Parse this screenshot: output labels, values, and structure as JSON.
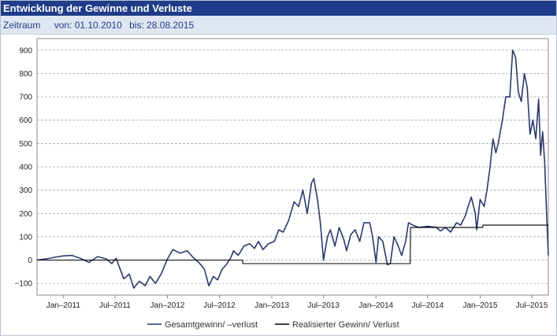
{
  "header": {
    "title": "Entwicklung der Gewinne und Verluste"
  },
  "range": {
    "label": "Zeitraum",
    "from_label": "von: 01.10.2010",
    "to_label": "bis: 28.08.2015"
  },
  "colors": {
    "title_bg": "#1f3c88",
    "range_bg": "#dfe6f1",
    "series_total": "#2b3a6b",
    "series_realized": "#000000",
    "grid": "#9a9a9a"
  },
  "chart_data": {
    "type": "line",
    "x_unit": "date",
    "xlim": [
      "2010-10-01",
      "2015-08-28"
    ],
    "ylim": [
      -150,
      950
    ],
    "yticks": [
      -100,
      0,
      100,
      200,
      300,
      400,
      500,
      600,
      700,
      800,
      900
    ],
    "ytick_labels": [
      "−100",
      "0",
      "100",
      "200",
      "300",
      "400",
      "500",
      "600",
      "700",
      "800",
      "900"
    ],
    "xticks": [
      "2011-01-01",
      "2011-07-01",
      "2012-01-01",
      "2012-07-01",
      "2013-01-01",
      "2013-07-01",
      "2014-01-01",
      "2014-07-01",
      "2015-01-01",
      "2015-07-01"
    ],
    "xtick_labels": [
      "Jan–2011",
      "Jul–2011",
      "Jan–2012",
      "Jul–2012",
      "Jan–2013",
      "Jul–2013",
      "Jan–2014",
      "Jul–2014",
      "Jan–2015",
      "Jul–2015"
    ],
    "grid": "horizontal dashed",
    "legend_position": "bottom",
    "series": [
      {
        "name": "Gesamtgewinn/ –verlust",
        "points": [
          [
            "2010-10-01",
            0
          ],
          [
            "2010-11-01",
            5
          ],
          [
            "2010-12-01",
            12
          ],
          [
            "2011-01-01",
            18
          ],
          [
            "2011-02-01",
            20
          ],
          [
            "2011-03-01",
            8
          ],
          [
            "2011-04-01",
            -10
          ],
          [
            "2011-05-01",
            15
          ],
          [
            "2011-06-01",
            5
          ],
          [
            "2011-06-20",
            -15
          ],
          [
            "2011-07-05",
            8
          ],
          [
            "2011-08-01",
            -80
          ],
          [
            "2011-08-20",
            -60
          ],
          [
            "2011-09-05",
            -120
          ],
          [
            "2011-09-25",
            -90
          ],
          [
            "2011-10-15",
            -110
          ],
          [
            "2011-11-01",
            -70
          ],
          [
            "2011-11-20",
            -100
          ],
          [
            "2011-12-10",
            -60
          ],
          [
            "2012-01-01",
            5
          ],
          [
            "2012-01-20",
            45
          ],
          [
            "2012-02-15",
            30
          ],
          [
            "2012-03-10",
            40
          ],
          [
            "2012-04-01",
            10
          ],
          [
            "2012-04-20",
            -10
          ],
          [
            "2012-05-10",
            -40
          ],
          [
            "2012-05-25",
            -110
          ],
          [
            "2012-06-10",
            -70
          ],
          [
            "2012-06-25",
            -85
          ],
          [
            "2012-07-10",
            -40
          ],
          [
            "2012-07-25",
            -20
          ],
          [
            "2012-08-10",
            10
          ],
          [
            "2012-08-20",
            40
          ],
          [
            "2012-09-05",
            20
          ],
          [
            "2012-09-25",
            60
          ],
          [
            "2012-10-15",
            70
          ],
          [
            "2012-11-01",
            50
          ],
          [
            "2012-11-15",
            80
          ],
          [
            "2012-12-01",
            45
          ],
          [
            "2012-12-20",
            70
          ],
          [
            "2013-01-10",
            80
          ],
          [
            "2013-01-25",
            130
          ],
          [
            "2013-02-10",
            120
          ],
          [
            "2013-03-01",
            170
          ],
          [
            "2013-03-20",
            250
          ],
          [
            "2013-04-05",
            230
          ],
          [
            "2013-04-20",
            300
          ],
          [
            "2013-05-05",
            200
          ],
          [
            "2013-05-20",
            330
          ],
          [
            "2013-05-28",
            350
          ],
          [
            "2013-06-10",
            260
          ],
          [
            "2013-06-20",
            160
          ],
          [
            "2013-07-01",
            0
          ],
          [
            "2013-07-15",
            100
          ],
          [
            "2013-07-25",
            130
          ],
          [
            "2013-08-10",
            60
          ],
          [
            "2013-08-25",
            140
          ],
          [
            "2013-09-10",
            90
          ],
          [
            "2013-09-20",
            40
          ],
          [
            "2013-10-05",
            110
          ],
          [
            "2013-10-20",
            130
          ],
          [
            "2013-11-05",
            80
          ],
          [
            "2013-11-20",
            160
          ],
          [
            "2013-12-10",
            160
          ],
          [
            "2013-12-20",
            100
          ],
          [
            "2014-01-01",
            -10
          ],
          [
            "2014-01-10",
            100
          ],
          [
            "2014-01-25",
            80
          ],
          [
            "2014-02-10",
            -20
          ],
          [
            "2014-02-20",
            -15
          ],
          [
            "2014-03-05",
            100
          ],
          [
            "2014-03-20",
            60
          ],
          [
            "2014-04-01",
            20
          ],
          [
            "2014-04-15",
            80
          ],
          [
            "2014-04-25",
            160
          ],
          [
            "2014-05-10",
            150
          ],
          [
            "2014-06-01",
            140
          ],
          [
            "2014-07-01",
            145
          ],
          [
            "2014-08-01",
            140
          ],
          [
            "2014-08-15",
            125
          ],
          [
            "2014-09-01",
            140
          ],
          [
            "2014-09-20",
            120
          ],
          [
            "2014-10-10",
            160
          ],
          [
            "2014-10-25",
            150
          ],
          [
            "2014-11-10",
            190
          ],
          [
            "2014-11-20",
            230
          ],
          [
            "2014-12-01",
            270
          ],
          [
            "2014-12-15",
            200
          ],
          [
            "2014-12-20",
            130
          ],
          [
            "2015-01-01",
            260
          ],
          [
            "2015-01-15",
            230
          ],
          [
            "2015-01-25",
            300
          ],
          [
            "2015-02-05",
            400
          ],
          [
            "2015-02-15",
            520
          ],
          [
            "2015-02-25",
            460
          ],
          [
            "2015-03-05",
            500
          ],
          [
            "2015-03-20",
            600
          ],
          [
            "2015-04-01",
            700
          ],
          [
            "2015-04-15",
            700
          ],
          [
            "2015-04-25",
            900
          ],
          [
            "2015-05-05",
            870
          ],
          [
            "2015-05-15",
            720
          ],
          [
            "2015-05-25",
            680
          ],
          [
            "2015-06-05",
            800
          ],
          [
            "2015-06-15",
            740
          ],
          [
            "2015-06-25",
            540
          ],
          [
            "2015-07-05",
            600
          ],
          [
            "2015-07-15",
            520
          ],
          [
            "2015-07-25",
            690
          ],
          [
            "2015-08-01",
            450
          ],
          [
            "2015-08-08",
            550
          ],
          [
            "2015-08-15",
            420
          ],
          [
            "2015-08-22",
            200
          ],
          [
            "2015-08-28",
            20
          ]
        ]
      },
      {
        "name": "Realisierter Gewinn/ Verlust",
        "points": [
          [
            "2010-10-01",
            0
          ],
          [
            "2012-09-20",
            0
          ],
          [
            "2012-09-21",
            -15
          ],
          [
            "2014-05-01",
            -15
          ],
          [
            "2014-05-02",
            140
          ],
          [
            "2015-01-10",
            140
          ],
          [
            "2015-01-11",
            150
          ],
          [
            "2015-08-28",
            150
          ]
        ]
      }
    ]
  }
}
